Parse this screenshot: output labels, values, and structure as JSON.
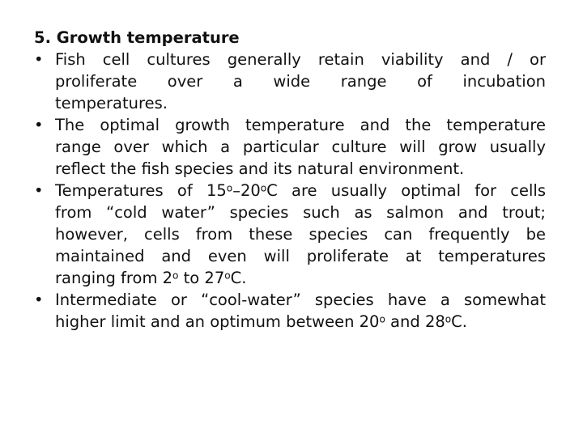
{
  "heading": "5. Growth temperature",
  "bullet_symbol": "•",
  "bullets": [
    {
      "lines": [
        "Fish cell cultures generally retain viability and / or",
        "proliferate over a wide range of incubation",
        "temperatures."
      ]
    },
    {
      "lines": [
        "The optimal growth temperature and the temperature",
        "range over which a particular culture will grow usually",
        "reflect the fish species and its natural environment."
      ]
    },
    {
      "lines": [
        "Temperatures of 15°–20°C are usually optimal for cells",
        "from “cold water” species such as salmon and trout;",
        "however, cells from these species can frequently be",
        "maintained and even will proliferate at temperatures",
        "ranging from 2° to 27°C."
      ]
    },
    {
      "lines": [
        "Intermediate or “cool-water” species have a somewhat",
        "higher limit and an optimum between 20° and 28°C."
      ]
    }
  ]
}
